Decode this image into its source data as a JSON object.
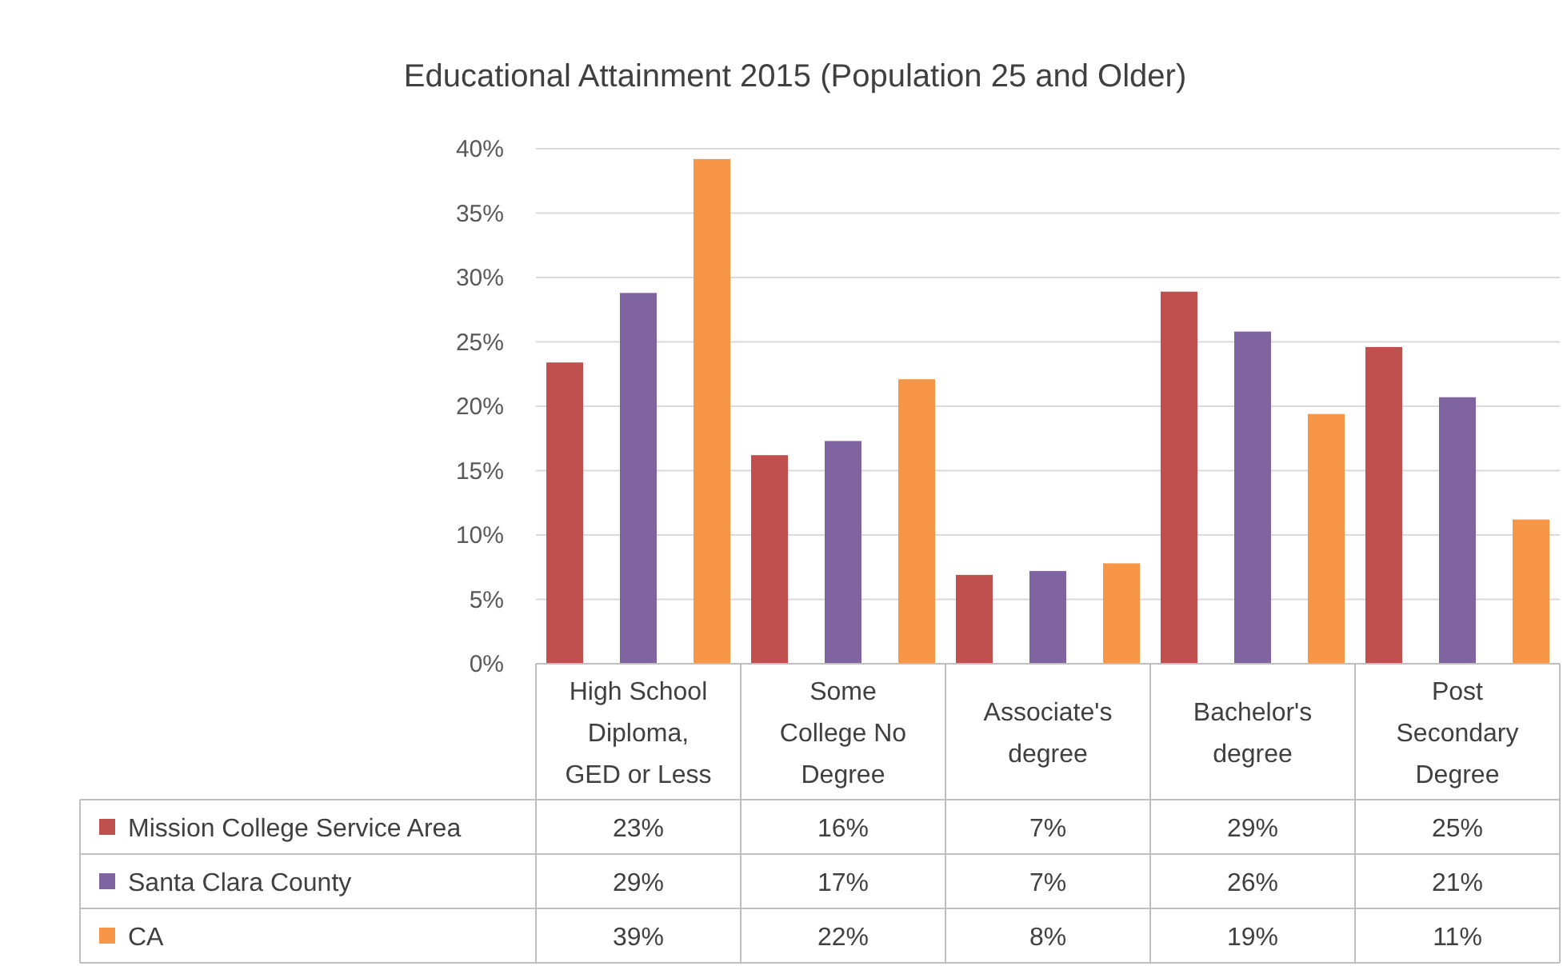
{
  "chart_data": {
    "type": "bar",
    "title": "Educational Attainment 2015 (Population 25 and Older)",
    "categories": [
      "High School Diploma, GED or Less",
      "Some College No Degree",
      "Associate's degree",
      "Bachelor's degree",
      "Post Secondary Degree"
    ],
    "series": [
      {
        "name": "Mission College Service Area",
        "color": "#c0504d",
        "values": [
          23.4,
          16.2,
          6.9,
          28.9,
          24.6
        ],
        "value_labels": [
          "23%",
          "16%",
          "7%",
          "29%",
          "25%"
        ]
      },
      {
        "name": "Santa Clara County",
        "color": "#8064a2",
        "values": [
          28.8,
          17.3,
          7.2,
          25.8,
          20.7
        ],
        "value_labels": [
          "29%",
          "17%",
          "7%",
          "26%",
          "21%"
        ]
      },
      {
        "name": "CA",
        "color": "#f79646",
        "values": [
          39.2,
          22.1,
          7.8,
          19.4,
          11.2
        ],
        "value_labels": [
          "39%",
          "22%",
          "8%",
          "19%",
          "11%"
        ]
      }
    ],
    "ylim": [
      0,
      40
    ],
    "yticks": [
      {
        "value": 0,
        "label": "0%"
      },
      {
        "value": 5,
        "label": "5%"
      },
      {
        "value": 10,
        "label": "10%"
      },
      {
        "value": 15,
        "label": "15%"
      },
      {
        "value": 20,
        "label": "20%"
      },
      {
        "value": 25,
        "label": "25%"
      },
      {
        "value": 30,
        "label": "30%"
      },
      {
        "value": 35,
        "label": "35%"
      },
      {
        "value": 40,
        "label": "40%"
      }
    ],
    "grid": "y",
    "legend": "bottom left"
  }
}
